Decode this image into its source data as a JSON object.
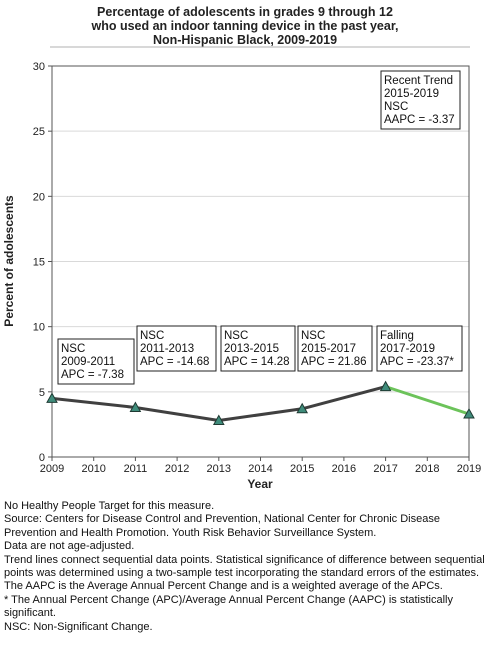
{
  "chart_data": {
    "type": "line",
    "title_lines": [
      "Percentage of adolescents in grades 9 through 12",
      "who used an indoor tanning device in the past year,",
      "Non-Hispanic Black,  2009-2019"
    ],
    "xlabel": "Year",
    "ylabel": "Percent of adolescents",
    "xlim": [
      2009,
      2019
    ],
    "ylim": [
      0,
      30
    ],
    "x_ticks": [
      2009,
      2010,
      2011,
      2012,
      2013,
      2014,
      2015,
      2016,
      2017,
      2018,
      2019
    ],
    "y_ticks": [
      0,
      5,
      10,
      15,
      20,
      25,
      30
    ],
    "grid": "horizontal",
    "points": [
      {
        "x": 2009,
        "y": 4.5
      },
      {
        "x": 2011,
        "y": 3.8
      },
      {
        "x": 2013,
        "y": 2.8
      },
      {
        "x": 2015,
        "y": 3.7
      },
      {
        "x": 2017,
        "y": 5.4
      },
      {
        "x": 2019,
        "y": 3.3
      }
    ],
    "segments": [
      {
        "from": 2009,
        "to": 2017,
        "color": "#404040",
        "label_lines": []
      },
      {
        "from": 2017,
        "to": 2019,
        "color": "#6cc35a",
        "label_lines": []
      }
    ],
    "annotations": [
      {
        "lines": [
          "NSC",
          "2009-2011",
          "APC = -7.38"
        ]
      },
      {
        "lines": [
          "NSC",
          "2011-2013",
          "APC = -14.68"
        ]
      },
      {
        "lines": [
          "NSC",
          "2013-2015",
          "APC = 14.28"
        ]
      },
      {
        "lines": [
          "NSC",
          "2015-2017",
          "APC = 21.86"
        ]
      },
      {
        "lines": [
          "Falling",
          "2017-2019",
          "APC = -23.37*"
        ]
      },
      {
        "lines": [
          "Recent Trend",
          "2015-2019",
          "NSC",
          "AAPC = -3.37"
        ]
      }
    ],
    "colors": {
      "line": "#404040",
      "recent_line": "#6cc35a",
      "marker_fill": "#3f8c7b",
      "marker_stroke": "#1f3a33",
      "grid": "#d9d9d9"
    }
  },
  "footnotes": [
    "No Healthy People Target for this measure.",
    "Source: Centers for Disease Control and Prevention, National Center for Chronic Disease Prevention and Health Promotion. Youth Risk Behavior Surveillance System.",
    "Data are not age-adjusted.",
    "Trend lines connect sequential data points. Statistical significance of difference between sequential points was determined using a two-sample test incorporating the standard errors of the estimates.",
    "The AAPC is the Average Annual Percent Change and is a weighted average of the APCs.",
    "* The Annual Percent Change (APC)/Average Annual Percent Change (AAPC) is statistically significant.",
    "NSC: Non-Significant Change."
  ]
}
